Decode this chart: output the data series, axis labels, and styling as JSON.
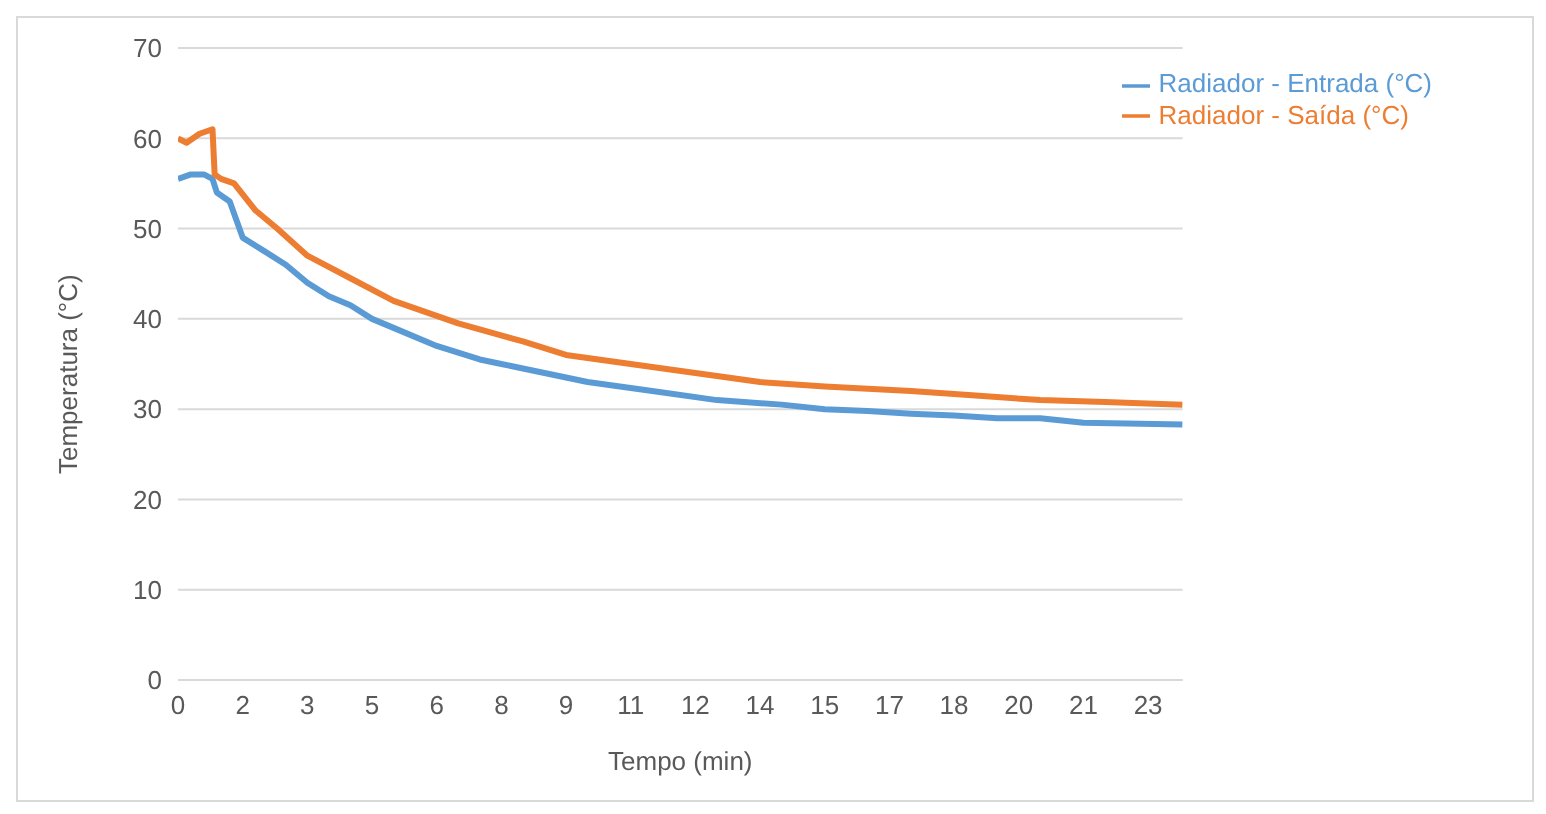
{
  "chart_data": {
    "type": "line",
    "xlabel": "Tempo (min)",
    "ylabel": "Temperatura (°C)",
    "xlim": [
      0,
      23.3
    ],
    "xticks": [
      0,
      {
        "value": 1.5,
        "label": "2"
      },
      3,
      {
        "value": 4.5,
        "label": "5"
      },
      6,
      {
        "value": 7.5,
        "label": "8"
      },
      9,
      {
        "value": 10.5,
        "label": "11"
      },
      12,
      {
        "value": 13.5,
        "label": "14"
      },
      15,
      {
        "value": 16.5,
        "label": "17"
      },
      18,
      {
        "value": 19.5,
        "label": "20"
      },
      21,
      {
        "value": 22.5,
        "label": "23"
      }
    ],
    "ylim": [
      0,
      70
    ],
    "yticks": [
      0,
      10,
      20,
      30,
      40,
      50,
      60,
      70
    ],
    "grid": "y",
    "legend": "top right",
    "marker": "none",
    "line_style": "solid",
    "series": [
      {
        "name": "Radiador - Entrada (°C)",
        "color": "#5b9bd5",
        "x": [
          0,
          0.3,
          0.6,
          0.8,
          0.9,
          1.2,
          1.5,
          2,
          2.5,
          3,
          3.5,
          4,
          4.5,
          5,
          6,
          7,
          7.5,
          8.5,
          9.5,
          11,
          12.5,
          14,
          15,
          16,
          17,
          18,
          19,
          20,
          21,
          22,
          23.3
        ],
        "values": [
          55.5,
          56,
          56,
          55.5,
          54,
          53,
          49,
          47.5,
          46,
          44,
          42.5,
          41.5,
          40,
          39,
          37,
          35.5,
          35,
          34,
          33,
          32,
          31,
          30.5,
          30,
          29.8,
          29.5,
          29.3,
          29,
          29,
          28.5,
          28.4,
          28.3
        ]
      },
      {
        "name": "Radiador - Saída (°C)",
        "color": "#ed7d31",
        "x": [
          0,
          0.2,
          0.5,
          0.8,
          0.85,
          1,
          1.3,
          1.8,
          2.3,
          3,
          4,
          5,
          6.5,
          8,
          9,
          10.5,
          12,
          13.5,
          15,
          17,
          18.5,
          20,
          21.5,
          23.3
        ],
        "values": [
          60,
          59.5,
          60.5,
          61,
          56,
          55.5,
          55,
          52,
          50,
          47,
          44.5,
          42,
          39.5,
          37.5,
          36,
          35,
          34,
          33,
          32.5,
          32,
          31.5,
          31,
          30.8,
          30.5
        ]
      }
    ]
  }
}
